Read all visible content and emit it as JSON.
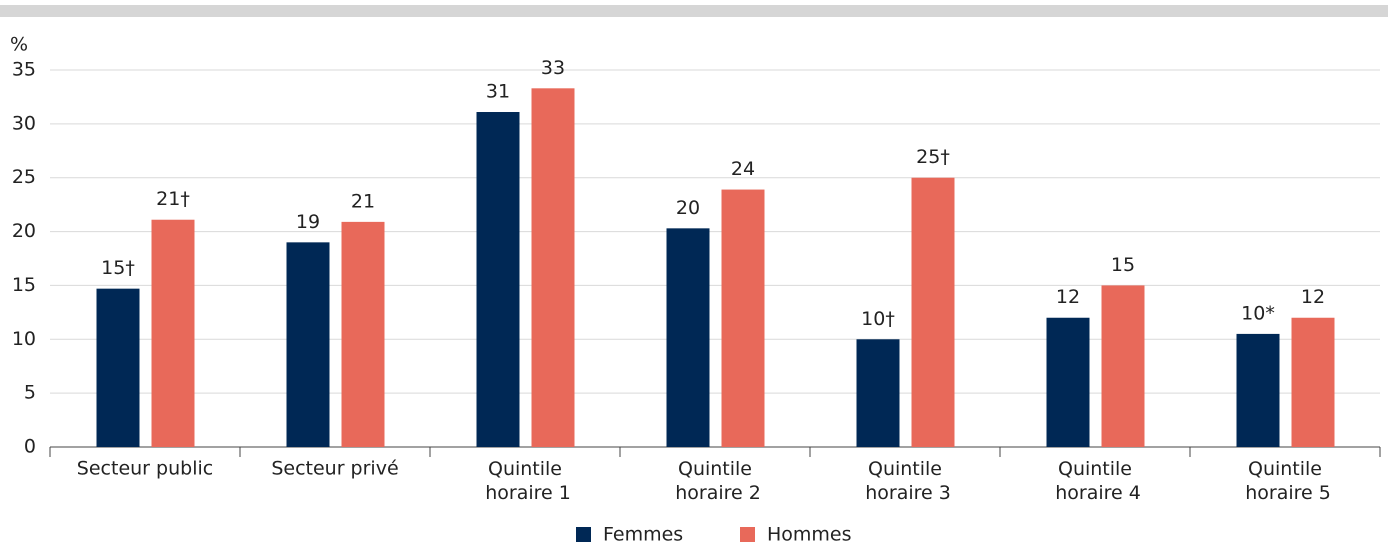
{
  "chart_data": {
    "type": "bar",
    "y_unit": "%",
    "categories": [
      "Secteur public",
      "Secteur privé",
      "Quintile horaire 1",
      "Quintile horaire 2",
      "Quintile horaire 3",
      "Quintile horaire 4",
      "Quintile horaire 5"
    ],
    "series": [
      {
        "name": "Femmes",
        "color": "#002855",
        "values": [
          14.7,
          19.0,
          31.1,
          20.3,
          10.0,
          12.0,
          10.5
        ],
        "value_labels": [
          "15†",
          "19",
          "31",
          "20",
          "10†",
          "12",
          "10*"
        ]
      },
      {
        "name": "Hommes",
        "color": "#e8695a",
        "values": [
          21.1,
          20.9,
          33.3,
          23.9,
          25.0,
          15.0,
          12.0
        ],
        "value_labels": [
          "21†",
          "21",
          "33",
          "24",
          "25†",
          "15",
          "12"
        ]
      }
    ],
    "ylim": [
      0,
      35
    ],
    "yticks": [
      0,
      5,
      10,
      15,
      20,
      25,
      30,
      35
    ],
    "grid": true,
    "legend": "bottom"
  }
}
